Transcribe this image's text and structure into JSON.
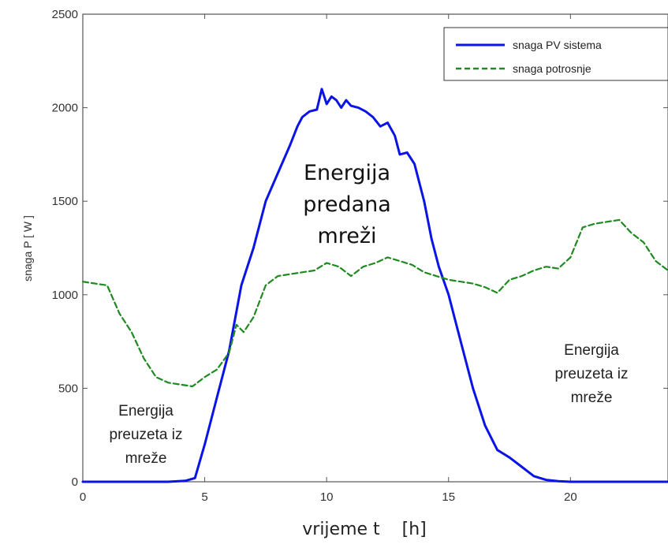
{
  "chart_data": {
    "type": "line",
    "title": "",
    "xlabel": "vrijeme t    [h]",
    "ylabel": "snaga P  [ W ]",
    "xlim": [
      0,
      24
    ],
    "ylim": [
      0,
      2500
    ],
    "xticks": [
      0,
      5,
      10,
      15,
      20
    ],
    "yticks": [
      0,
      500,
      1000,
      1500,
      2000,
      2500
    ],
    "grid": false,
    "legend_position": "top-right",
    "series": [
      {
        "name": "snaga PV sistema",
        "color": "#0a14e6",
        "style": "solid",
        "x": [
          0,
          3.5,
          4.2,
          4.6,
          5.0,
          5.5,
          6.0,
          6.5,
          7.0,
          7.5,
          8.0,
          8.5,
          8.8,
          9.0,
          9.3,
          9.6,
          9.8,
          10.0,
          10.2,
          10.4,
          10.6,
          10.8,
          11.0,
          11.3,
          11.6,
          11.9,
          12.2,
          12.5,
          12.8,
          13.0,
          13.3,
          13.6,
          14.0,
          14.3,
          14.6,
          15.0,
          15.3,
          15.6,
          16.0,
          16.5,
          17.0,
          17.5,
          18.0,
          18.5,
          19.0,
          19.5,
          20.0,
          24
        ],
        "values": [
          0,
          0,
          5,
          20,
          200,
          450,
          700,
          1050,
          1250,
          1500,
          1650,
          1800,
          1900,
          1950,
          1980,
          1990,
          2100,
          2020,
          2060,
          2040,
          2000,
          2040,
          2010,
          2000,
          1980,
          1950,
          1900,
          1920,
          1850,
          1750,
          1760,
          1700,
          1500,
          1300,
          1150,
          1000,
          850,
          700,
          500,
          300,
          170,
          130,
          80,
          30,
          10,
          3,
          0,
          0
        ]
      },
      {
        "name": "snaga potrosnje",
        "color": "#1f8a1f",
        "style": "dashed",
        "x": [
          0,
          0.5,
          1.0,
          1.5,
          2.0,
          2.5,
          3.0,
          3.5,
          4.0,
          4.5,
          5.0,
          5.5,
          6.0,
          6.3,
          6.6,
          7.0,
          7.5,
          8.0,
          8.5,
          9.0,
          9.5,
          10.0,
          10.5,
          11.0,
          11.5,
          12.0,
          12.5,
          13.0,
          13.5,
          14.0,
          14.5,
          15.0,
          15.5,
          16.0,
          16.5,
          17.0,
          17.5,
          18.0,
          18.5,
          19.0,
          19.5,
          20.0,
          20.5,
          21.0,
          21.5,
          22.0,
          22.5,
          23.0,
          23.5,
          24.0
        ],
        "values": [
          1070,
          1060,
          1050,
          900,
          800,
          660,
          560,
          530,
          520,
          510,
          560,
          600,
          690,
          840,
          800,
          880,
          1050,
          1100,
          1110,
          1120,
          1130,
          1170,
          1150,
          1100,
          1150,
          1170,
          1200,
          1180,
          1160,
          1120,
          1100,
          1080,
          1070,
          1060,
          1040,
          1010,
          1080,
          1100,
          1130,
          1150,
          1140,
          1200,
          1360,
          1380,
          1390,
          1400,
          1330,
          1280,
          1180,
          1130
        ]
      }
    ],
    "annotations": {
      "center": [
        "Energija",
        "predana",
        "mreži"
      ],
      "left": [
        "Energija",
        "preuzeta iz",
        "mreže"
      ],
      "right": [
        "Energija",
        "preuzeta iz",
        "mreže"
      ]
    }
  }
}
